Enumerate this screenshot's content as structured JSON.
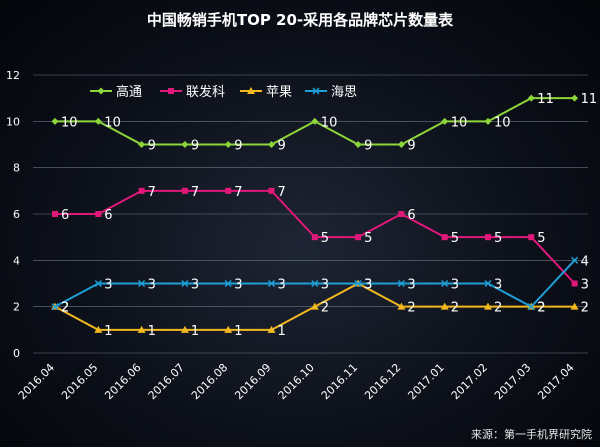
{
  "chart_data": {
    "type": "line",
    "title": "中国畅销手机TOP 20-采用各品牌芯片数量表",
    "categories": [
      "2016.04",
      "2016.05",
      "2016.06",
      "2016.07",
      "2016.08",
      "2016.09",
      "2016.10",
      "2016.11",
      "2016.12",
      "2017.01",
      "2017.02",
      "2017.03",
      "2017.04"
    ],
    "ylim": [
      0,
      12
    ],
    "yticks": [
      0,
      2,
      4,
      6,
      8,
      10,
      12
    ],
    "grid": true,
    "legend_position": "top-left",
    "series": [
      {
        "name": "高通",
        "color": "#8cd63a",
        "values": [
          10,
          10,
          9,
          9,
          9,
          9,
          10,
          9,
          9,
          10,
          10,
          11,
          11
        ]
      },
      {
        "name": "联发科",
        "color": "#e0187a",
        "values": [
          6,
          6,
          7,
          7,
          7,
          7,
          5,
          5,
          6,
          5,
          5,
          5,
          3
        ]
      },
      {
        "name": "苹果",
        "color": "#f2b820",
        "values": [
          2,
          1,
          1,
          1,
          1,
          1,
          2,
          3,
          2,
          2,
          2,
          2,
          2
        ]
      },
      {
        "name": "海思",
        "color": "#1e9fd8",
        "values": [
          2,
          3,
          3,
          3,
          3,
          3,
          3,
          3,
          3,
          3,
          3,
          2,
          4
        ]
      }
    ],
    "source": "来源：第一手机界研究院"
  }
}
